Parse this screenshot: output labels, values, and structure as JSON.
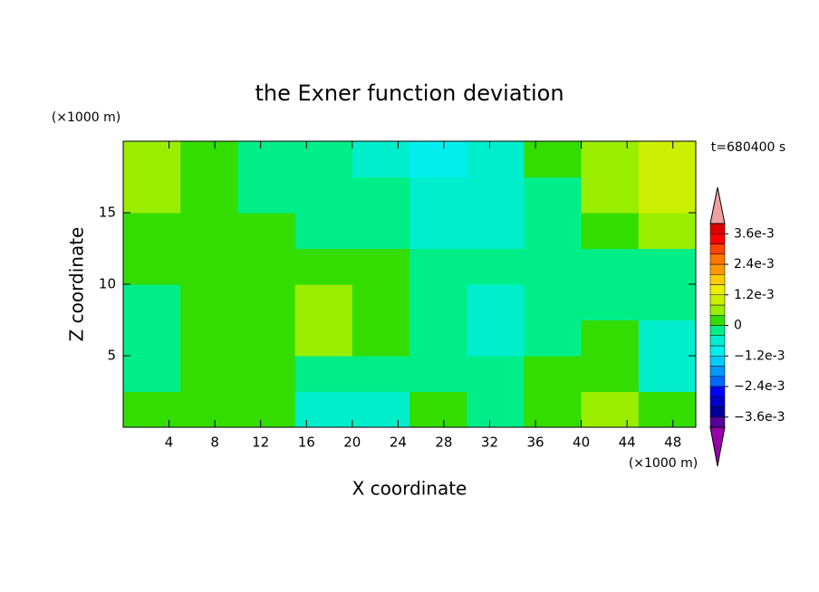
{
  "chart_data": {
    "type": "contour",
    "title": "the Exner function deviation",
    "xlabel": "X coordinate",
    "ylabel": "Z coordinate",
    "x_unit": "(×1000 m)",
    "y_unit": "(×1000 m)",
    "time_label": "t=680400 s",
    "xlim": [
      0,
      50
    ],
    "ylim": [
      0,
      20
    ],
    "xticks": [
      4,
      8,
      12,
      16,
      20,
      24,
      28,
      32,
      36,
      40,
      44,
      48
    ],
    "yticks": [
      5,
      10,
      15
    ],
    "xbins": [
      0,
      5,
      10,
      15,
      20,
      25,
      30,
      35,
      40,
      45,
      50
    ],
    "ybins": [
      0,
      2.5,
      5,
      7.5,
      10,
      12.5,
      15,
      17.5,
      20
    ],
    "values": [
      [
        0.0002,
        0.0002,
        0.0002,
        -0.0006,
        -0.0006,
        0.0002,
        -0.0002,
        0.0002,
        0.0006,
        0.0002
      ],
      [
        -0.0002,
        0.0002,
        0.0002,
        -0.0002,
        -0.0002,
        -0.0002,
        -0.0002,
        0.0002,
        0.0002,
        -0.0006
      ],
      [
        -0.0002,
        0.0002,
        0.0002,
        0.0006,
        0.0002,
        -0.0002,
        -0.0006,
        -0.0002,
        0.0002,
        -0.0006
      ],
      [
        -0.0002,
        0.0002,
        0.0002,
        0.0006,
        0.0002,
        -0.0002,
        -0.0006,
        -0.0002,
        -0.0002,
        -0.0002
      ],
      [
        0.0002,
        0.0002,
        0.0002,
        0.0002,
        0.0002,
        -0.0002,
        -0.0002,
        -0.0002,
        -0.0002,
        -0.0002
      ],
      [
        0.0002,
        0.0002,
        0.0002,
        -0.0002,
        -0.0002,
        -0.0006,
        -0.0006,
        -0.0002,
        0.0002,
        0.0006
      ],
      [
        0.0006,
        0.0002,
        -0.0002,
        -0.0002,
        -0.0002,
        -0.0006,
        -0.0006,
        -0.0002,
        0.0006,
        0.001
      ],
      [
        0.0006,
        0.0002,
        -0.0002,
        -0.0002,
        -0.0006,
        -0.001,
        -0.0006,
        0.0002,
        0.0006,
        0.001
      ]
    ],
    "levels": [
      -0.004,
      -0.0036,
      -0.0032,
      -0.0028,
      -0.0024,
      -0.002,
      -0.0016,
      -0.0012,
      -0.0008,
      -0.0004,
      0,
      0.0004,
      0.0008,
      0.0012,
      0.0016,
      0.002,
      0.0024,
      0.0028,
      0.0032,
      0.0036,
      0.004
    ],
    "colors": [
      "#550099",
      "#000099",
      "#0000cc",
      "#0000ff",
      "#0066ff",
      "#0099ff",
      "#00ccff",
      "#00eeee",
      "#00eecc",
      "#00ee88",
      "#33dd00",
      "#99ee00",
      "#ccee00",
      "#eeee00",
      "#ffcc00",
      "#ff9900",
      "#ff7700",
      "#ff4400",
      "#ff0000",
      "#dd0000"
    ],
    "extend_colors": [
      "#9900aa",
      "#f0a0a0"
    ],
    "cticks": [
      {
        "value": 0.0036,
        "label": "3.6e-3"
      },
      {
        "value": 0.0024,
        "label": "2.4e-3"
      },
      {
        "value": 0.0012,
        "label": "1.2e-3"
      },
      0,
      {
        "value": -0.0012,
        "label": "−1.2e-3"
      },
      {
        "value": -0.0024,
        "label": "−2.4e-3"
      },
      {
        "value": -0.0036,
        "label": "−3.6e-3"
      }
    ]
  }
}
